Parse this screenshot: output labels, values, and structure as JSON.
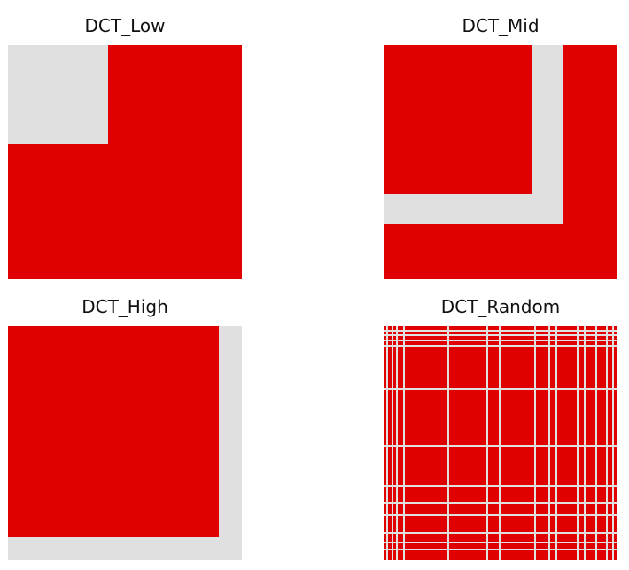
{
  "panels": [
    {
      "title": "DCT_Low",
      "unmasked_region": "low-frequency (top-left) block"
    },
    {
      "title": "DCT_Mid",
      "unmasked_region": "mid-frequency L-shaped band"
    },
    {
      "title": "DCT_High",
      "unmasked_region": "high-frequency L-shaped border (right and bottom)"
    },
    {
      "title": "DCT_Random",
      "unmasked_region": "random scattered rows and columns"
    }
  ],
  "colors": {
    "masked": "#e00000",
    "unmasked": "#e0e0e0",
    "background": "#ffffff",
    "title_text": "#111111"
  }
}
